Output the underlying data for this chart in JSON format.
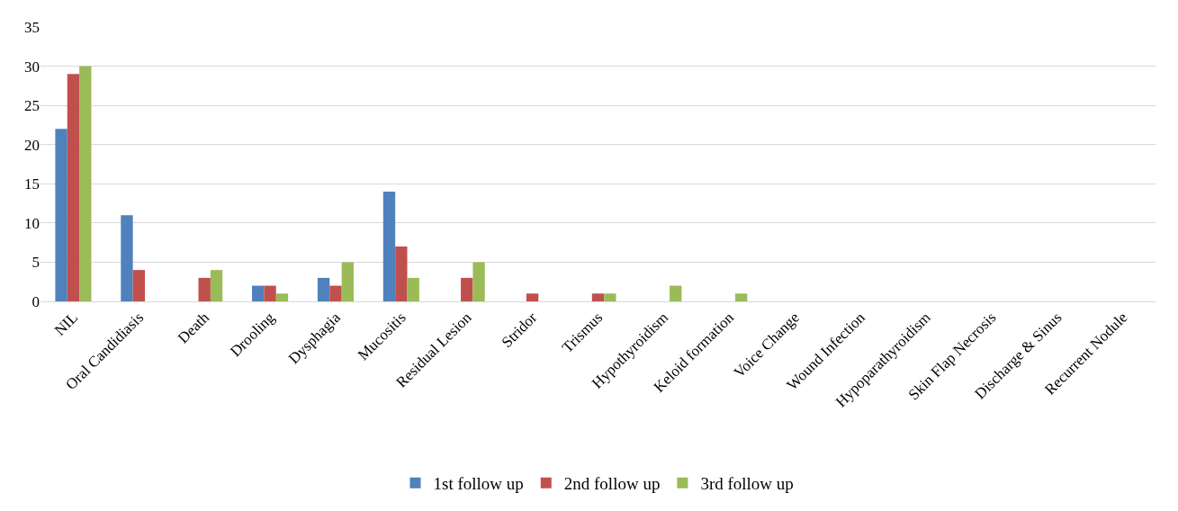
{
  "chart_data": {
    "type": "bar",
    "categories": [
      "NIL",
      "Oral Candidiasis",
      "Death",
      "Drooling",
      "Dysphagia",
      "Mucositis",
      "Residual Lesion",
      "Stridor",
      "Trismus",
      "Hypothyroidism",
      "Keloid formation",
      "Voice Change",
      "Wound Infection",
      "Hypoparathyroidism",
      "Skin Flap Necrosis",
      "Discharge & Sinus",
      "Recurrent Nodule"
    ],
    "series": [
      {
        "name": "1st follow up",
        "color": "#4f81bd",
        "values": [
          22,
          11,
          0,
          2,
          3,
          14,
          0,
          0,
          0,
          0,
          0,
          0,
          0,
          0,
          0,
          0,
          0
        ]
      },
      {
        "name": "2nd follow up",
        "color": "#c0504d",
        "values": [
          29,
          4,
          3,
          2,
          2,
          7,
          3,
          1,
          1,
          0,
          0,
          0,
          0,
          0,
          0,
          0,
          0
        ]
      },
      {
        "name": "3rd follow up",
        "color": "#9bbb59",
        "values": [
          30,
          0,
          4,
          1,
          5,
          3,
          5,
          0,
          1,
          2,
          1,
          0,
          0,
          0,
          0,
          0,
          0
        ]
      }
    ],
    "ylim": [
      0,
      35
    ],
    "yticks": [
      0,
      5,
      10,
      15,
      20,
      25,
      30,
      35
    ],
    "grid": "y",
    "legend": "bottom"
  }
}
